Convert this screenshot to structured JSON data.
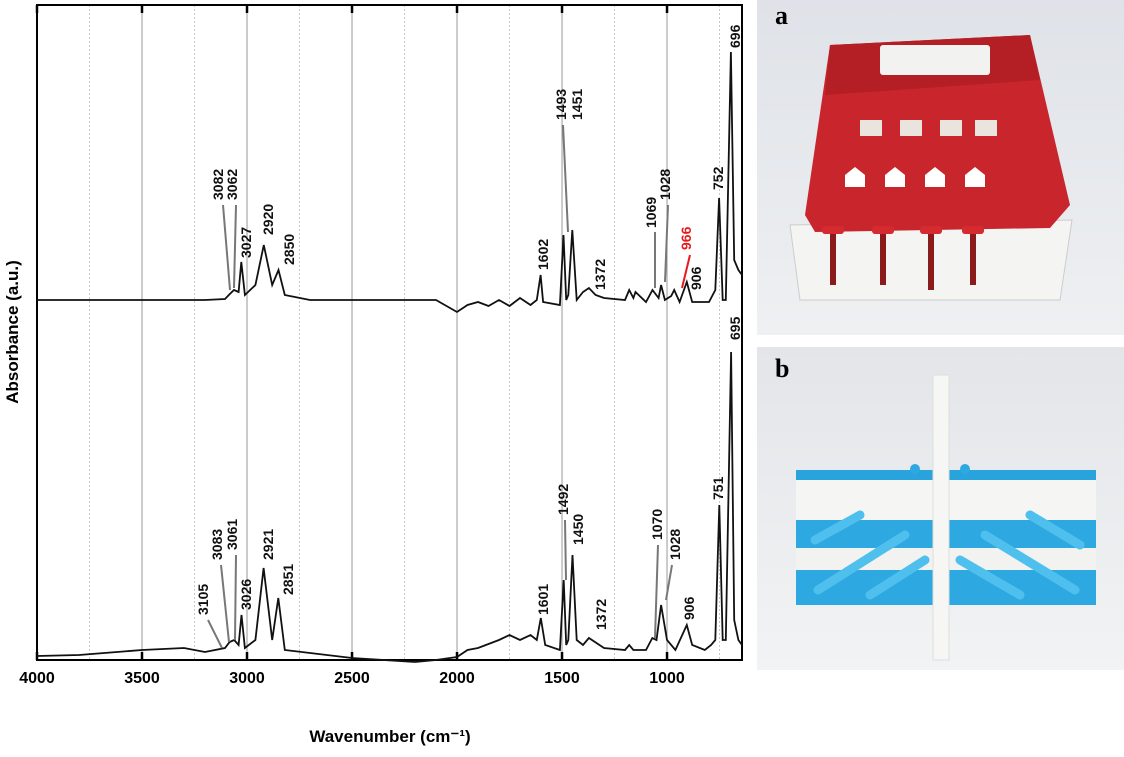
{
  "chart_data": {
    "type": "line",
    "x_label": "Wavenumber (cm⁻¹)",
    "y_label": "Absorbance (a.u.)",
    "xlim": [
      4000,
      643
    ],
    "ylim": [
      0,
      655
    ],
    "xticks": [
      4000,
      3500,
      3000,
      2500,
      2000,
      1500,
      1000
    ],
    "xminor": [
      3750,
      3250,
      2750,
      2250,
      1750,
      1250,
      750
    ],
    "grid": true,
    "series": [
      {
        "color": "#111111",
        "x": [
          4000,
          3200,
          3105,
          3082,
          3062,
          3040,
          3027,
          3010,
          2960,
          2920,
          2880,
          2850,
          2820,
          2700,
          2100,
          2000,
          1950,
          1900,
          1850,
          1800,
          1750,
          1700,
          1650,
          1620,
          1602,
          1590,
          1510,
          1493,
          1480,
          1470,
          1451,
          1430,
          1400,
          1372,
          1340,
          1300,
          1200,
          1180,
          1160,
          1150,
          1100,
          1069,
          1040,
          1028,
          1010,
          980,
          966,
          940,
          906,
          880,
          800,
          770,
          752,
          735,
          720,
          696,
          680,
          660,
          643
        ],
        "values": [
          360,
          360,
          361,
          366,
          370,
          368,
          398,
          365,
          375,
          415,
          375,
          390,
          365,
          360,
          360,
          348,
          355,
          358,
          354,
          360,
          354,
          362,
          355,
          360,
          385,
          358,
          355,
          425,
          360,
          365,
          430,
          360,
          368,
          372,
          365,
          362,
          360,
          370,
          362,
          368,
          358,
          370,
          362,
          375,
          360,
          364,
          370,
          358,
          378,
          358,
          358,
          370,
          462,
          360,
          360,
          608,
          400,
          390,
          385
        ],
        "peaks": [
          3082,
          3062,
          3027,
          2920,
          2850,
          1602,
          1493,
          1451,
          1372,
          1069,
          1028,
          {
            "label": 966,
            "color": "#e8191e"
          },
          906,
          752,
          696
        ]
      },
      {
        "color": "#111111",
        "x": [
          4000,
          3800,
          3500,
          3300,
          3200,
          3105,
          3083,
          3061,
          3040,
          3026,
          3010,
          2960,
          2921,
          2880,
          2851,
          2820,
          2500,
          2200,
          2100,
          2000,
          1950,
          1900,
          1800,
          1750,
          1700,
          1650,
          1620,
          1601,
          1580,
          1510,
          1492,
          1480,
          1470,
          1450,
          1430,
          1400,
          1372,
          1300,
          1200,
          1180,
          1160,
          1100,
          1070,
          1050,
          1028,
          1000,
          960,
          906,
          880,
          820,
          790,
          770,
          751,
          735,
          720,
          695,
          680,
          660,
          643
        ],
        "values": [
          4,
          5,
          10,
          12,
          8,
          12,
          18,
          20,
          15,
          45,
          12,
          20,
          92,
          20,
          62,
          10,
          2,
          -2,
          0,
          3,
          10,
          12,
          20,
          25,
          20,
          25,
          20,
          42,
          15,
          10,
          80,
          15,
          20,
          105,
          20,
          15,
          22,
          12,
          10,
          15,
          10,
          10,
          22,
          20,
          55,
          20,
          10,
          35,
          15,
          10,
          15,
          20,
          155,
          20,
          20,
          308,
          40,
          20,
          15
        ],
        "peaks": [
          3105,
          3083,
          3061,
          3026,
          2921,
          2851,
          1601,
          1492,
          1450,
          1372,
          1070,
          1028,
          906,
          751,
          695
        ]
      }
    ]
  },
  "panel_labels": [
    "a",
    "b"
  ]
}
